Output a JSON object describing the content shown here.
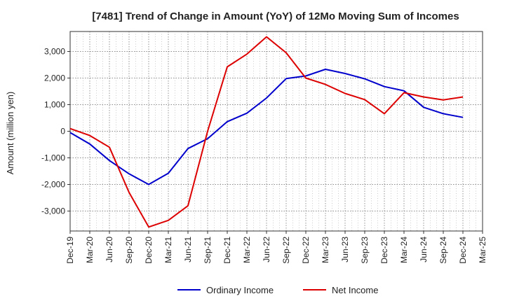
{
  "chart_data": {
    "type": "line",
    "title": "[7481]  Trend of Change in Amount (YoY) of 12Mo Moving Sum of Incomes",
    "ylabel": "Amount (million yen)",
    "xlabel": "",
    "ylim": [
      -3750,
      3750
    ],
    "yticks": [
      -3000,
      -2000,
      -1000,
      0,
      1000,
      2000,
      3000
    ],
    "ytick_labels": [
      "-3,000",
      "-2,000",
      "-1,000",
      "0",
      "1,000",
      "2,000",
      "3,000"
    ],
    "xtick_labels": [
      "Dec-19",
      "Mar-20",
      "Jun-20",
      "Sep-20",
      "Dec-20",
      "Mar-21",
      "Jun-21",
      "Sep-21",
      "Dec-21",
      "Mar-22",
      "Jun-22",
      "Sep-22",
      "Dec-22",
      "Mar-23",
      "Jun-23",
      "Sep-23",
      "Dec-23",
      "Mar-24",
      "Jun-24",
      "Sep-24",
      "Dec-24",
      "Mar-25"
    ],
    "grid": true,
    "legend_position": "bottom",
    "series": [
      {
        "name": "Ordinary Income",
        "color": "#0000cc",
        "values": [
          -50,
          -480,
          -1100,
          -1600,
          -2000,
          -1580,
          -650,
          -280,
          360,
          680,
          1250,
          1980,
          2080,
          2330,
          2170,
          1970,
          1680,
          1520,
          900,
          660,
          520
        ]
      },
      {
        "name": "Net Income",
        "color": "#dd0000",
        "values": [
          100,
          -160,
          -600,
          -2300,
          -3600,
          -3350,
          -2800,
          0,
          2420,
          2900,
          3550,
          2950,
          2000,
          1760,
          1420,
          1190,
          660,
          1450,
          1290,
          1180,
          1290
        ]
      }
    ]
  }
}
